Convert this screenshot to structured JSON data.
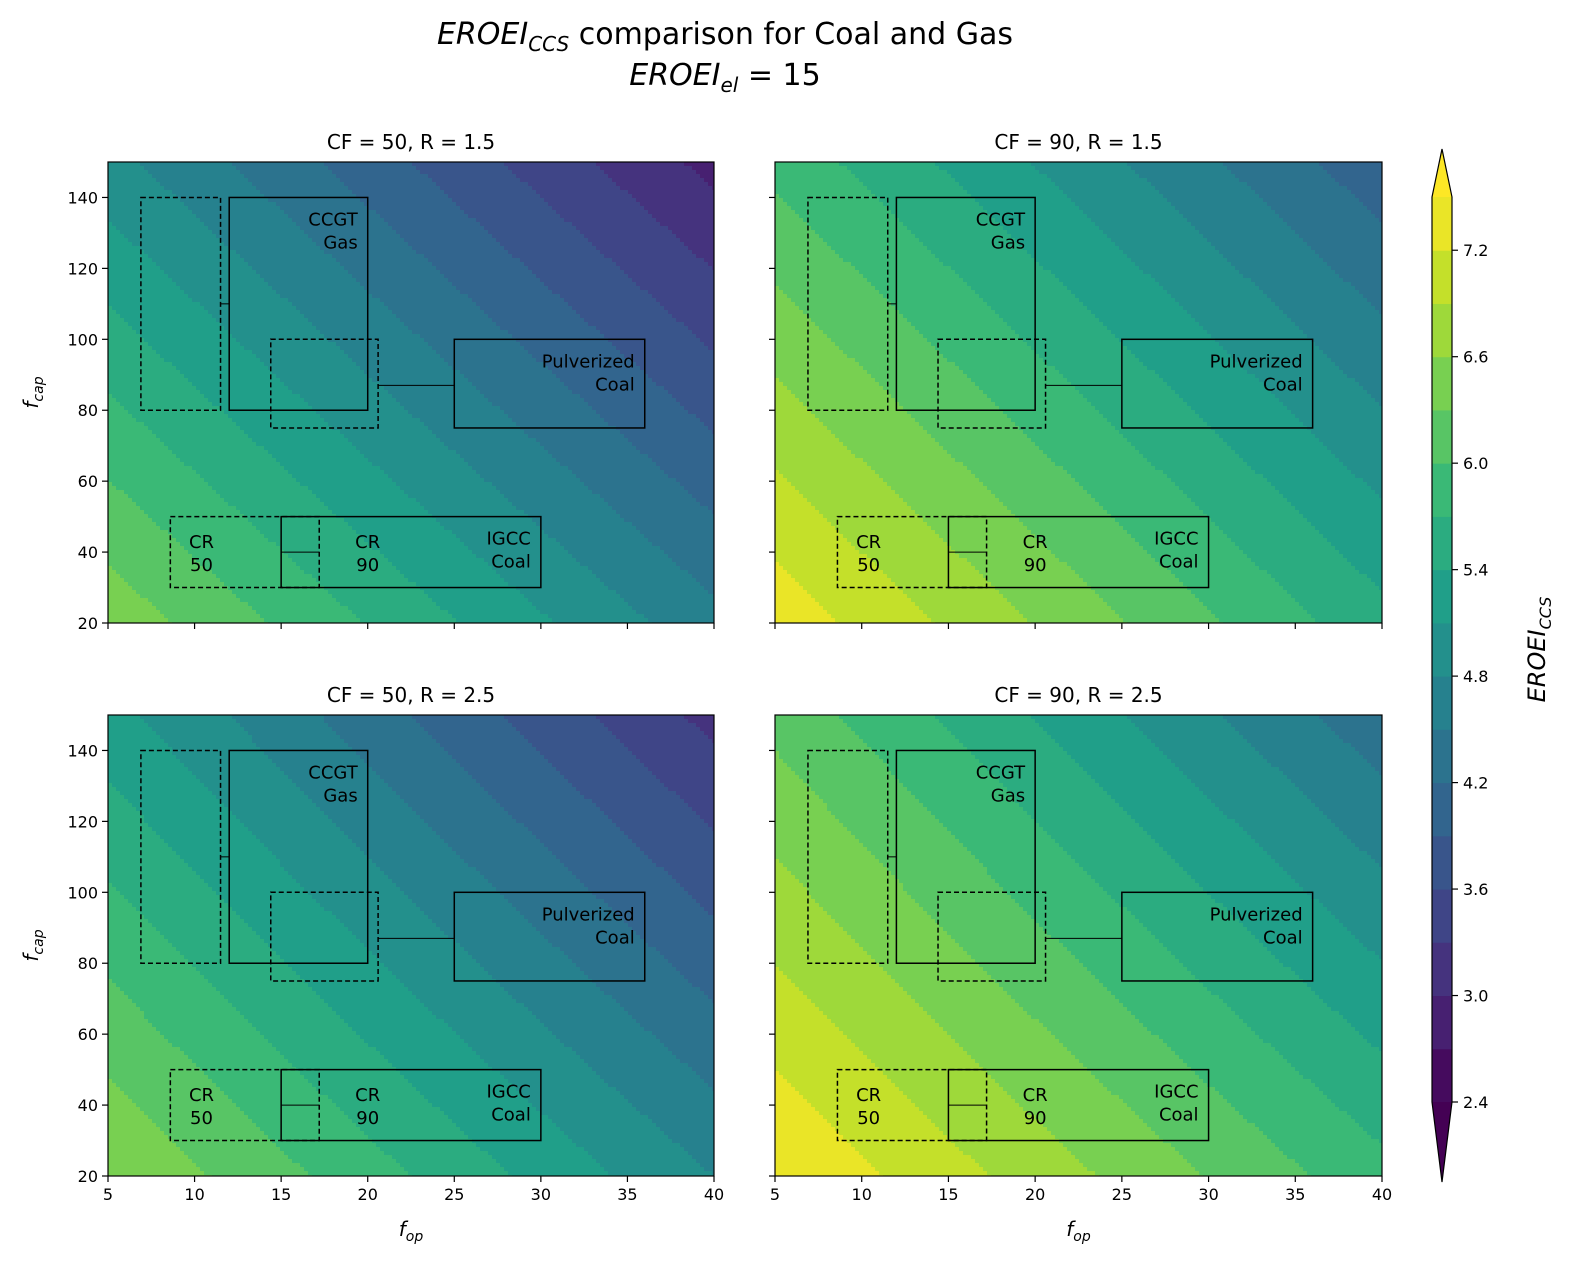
{
  "figure": {
    "title_line1_main": "EROEI",
    "title_line1_sub": "CCS",
    "title_line1_rest": " comparison for Coal and Gas",
    "title_line2_main": "EROEI",
    "title_line2_sub": "el",
    "title_line2_rest": " = 15"
  },
  "chart_data": [
    {
      "type": "heatmap",
      "panel": "top-left",
      "title": "CF = 50, R = 1.5",
      "CF": 50,
      "R": 1.5,
      "xlabel_main": "f",
      "xlabel_sub": "op",
      "ylabel_main": "f",
      "ylabel_sub": "cap",
      "show_xlabel": false,
      "show_ylabel": true,
      "show_xticklabels": false,
      "show_yticklabels": true,
      "xlim": [
        5,
        40
      ],
      "ylim": [
        20,
        150
      ],
      "xticks": [
        5,
        10,
        15,
        20,
        25,
        30,
        35,
        40
      ],
      "yticks": [
        20,
        40,
        60,
        80,
        100,
        120,
        140
      ],
      "approx_corner_values": {
        "x5_y20": 6.5,
        "x40_y20": 4.6,
        "x5_y150": 4.9,
        "x40_y150": 2.9
      }
    },
    {
      "type": "heatmap",
      "panel": "top-right",
      "title": "CF = 90, R = 1.5",
      "CF": 90,
      "R": 1.5,
      "xlabel_main": "f",
      "xlabel_sub": "op",
      "ylabel_main": "f",
      "ylabel_sub": "cap",
      "show_xlabel": false,
      "show_ylabel": false,
      "show_xticklabels": false,
      "show_yticklabels": false,
      "xlim": [
        5,
        40
      ],
      "ylim": [
        20,
        150
      ],
      "xticks": [
        5,
        10,
        15,
        20,
        25,
        30,
        35,
        40
      ],
      "yticks": [
        20,
        40,
        60,
        80,
        100,
        120,
        140
      ],
      "approx_corner_values": {
        "x5_y20": 7.4,
        "x40_y20": 5.5,
        "x5_y150": 5.9,
        "x40_y150": 4.0
      }
    },
    {
      "type": "heatmap",
      "panel": "bottom-left",
      "title": "CF = 50, R = 2.5",
      "CF": 50,
      "R": 2.5,
      "xlabel_main": "f",
      "xlabel_sub": "op",
      "ylabel_main": "f",
      "ylabel_sub": "cap",
      "show_xlabel": true,
      "show_ylabel": true,
      "show_xticklabels": true,
      "show_yticklabels": true,
      "xlim": [
        5,
        40
      ],
      "ylim": [
        20,
        150
      ],
      "xticks": [
        5,
        10,
        15,
        20,
        25,
        30,
        35,
        40
      ],
      "yticks": [
        20,
        40,
        60,
        80,
        100,
        120,
        140
      ],
      "approx_corner_values": {
        "x5_y20": 6.6,
        "x40_y20": 4.8,
        "x5_y150": 5.2,
        "x40_y150": 3.2
      }
    },
    {
      "type": "heatmap",
      "panel": "bottom-right",
      "title": "CF = 90, R = 2.5",
      "CF": 90,
      "R": 2.5,
      "xlabel_main": "f",
      "xlabel_sub": "op",
      "ylabel_main": "f",
      "ylabel_sub": "cap",
      "show_xlabel": true,
      "show_ylabel": false,
      "show_xticklabels": true,
      "show_yticklabels": false,
      "xlim": [
        5,
        40
      ],
      "ylim": [
        20,
        150
      ],
      "xticks": [
        5,
        10,
        15,
        20,
        25,
        30,
        35,
        40
      ],
      "yticks": [
        20,
        40,
        60,
        80,
        100,
        120,
        140
      ],
      "approx_corner_values": {
        "x5_y20": 7.5,
        "x40_y20": 5.8,
        "x5_y150": 6.2,
        "x40_y150": 4.3
      }
    }
  ],
  "annotations": {
    "solid_boxes": [
      {
        "name": "ccgt-gas",
        "x": [
          12,
          20
        ],
        "y": [
          80,
          140
        ],
        "label_line1": "CCGT",
        "label_line2": "Gas"
      },
      {
        "name": "pulverized-coal",
        "x": [
          25,
          36
        ],
        "y": [
          75,
          100
        ],
        "label_line1": "Pulverized",
        "label_line2": "Coal"
      },
      {
        "name": "igcc-coal",
        "x": [
          15,
          30
        ],
        "y": [
          30,
          50
        ],
        "label_line1": "IGCC",
        "label_line2": "Coal"
      }
    ],
    "dashed_boxes": [
      {
        "name": "ccgt-cr50",
        "x": [
          6.9,
          11.5
        ],
        "y": [
          80,
          140
        ]
      },
      {
        "name": "pulverized-cr50",
        "x": [
          14.4,
          20.6
        ],
        "y": [
          75,
          100
        ]
      },
      {
        "name": "igcc-cr50",
        "x": [
          8.6,
          17.2
        ],
        "y": [
          30,
          50
        ]
      }
    ],
    "connectors": [
      {
        "x": [
          11.5,
          12
        ],
        "y": [
          110,
          110
        ]
      },
      {
        "x": [
          20.6,
          25
        ],
        "y": [
          87,
          87
        ]
      },
      {
        "x": [
          15,
          17.2
        ],
        "y": [
          40,
          40
        ]
      }
    ],
    "text_labels": [
      {
        "line1": "CR",
        "line2": "50",
        "x": 10.4,
        "y": 40
      },
      {
        "line1": "CR",
        "line2": "90",
        "x": 20.0,
        "y": 40
      }
    ]
  },
  "colorbar": {
    "label_main": "EROEI",
    "label_sub": "CCS",
    "min": 2.4,
    "max": 7.5,
    "level_step": 0.3,
    "ticks": [
      "2.4",
      "3.0",
      "3.6",
      "4.2",
      "4.8",
      "5.4",
      "6.0",
      "6.6",
      "7.2"
    ],
    "extend": "both",
    "colormap": "viridis",
    "viridis_stops": [
      "#440154",
      "#482878",
      "#3e4a89",
      "#31688e",
      "#26828e",
      "#1f9e89",
      "#35b779",
      "#6ece58",
      "#b5de2b",
      "#fde725"
    ]
  }
}
